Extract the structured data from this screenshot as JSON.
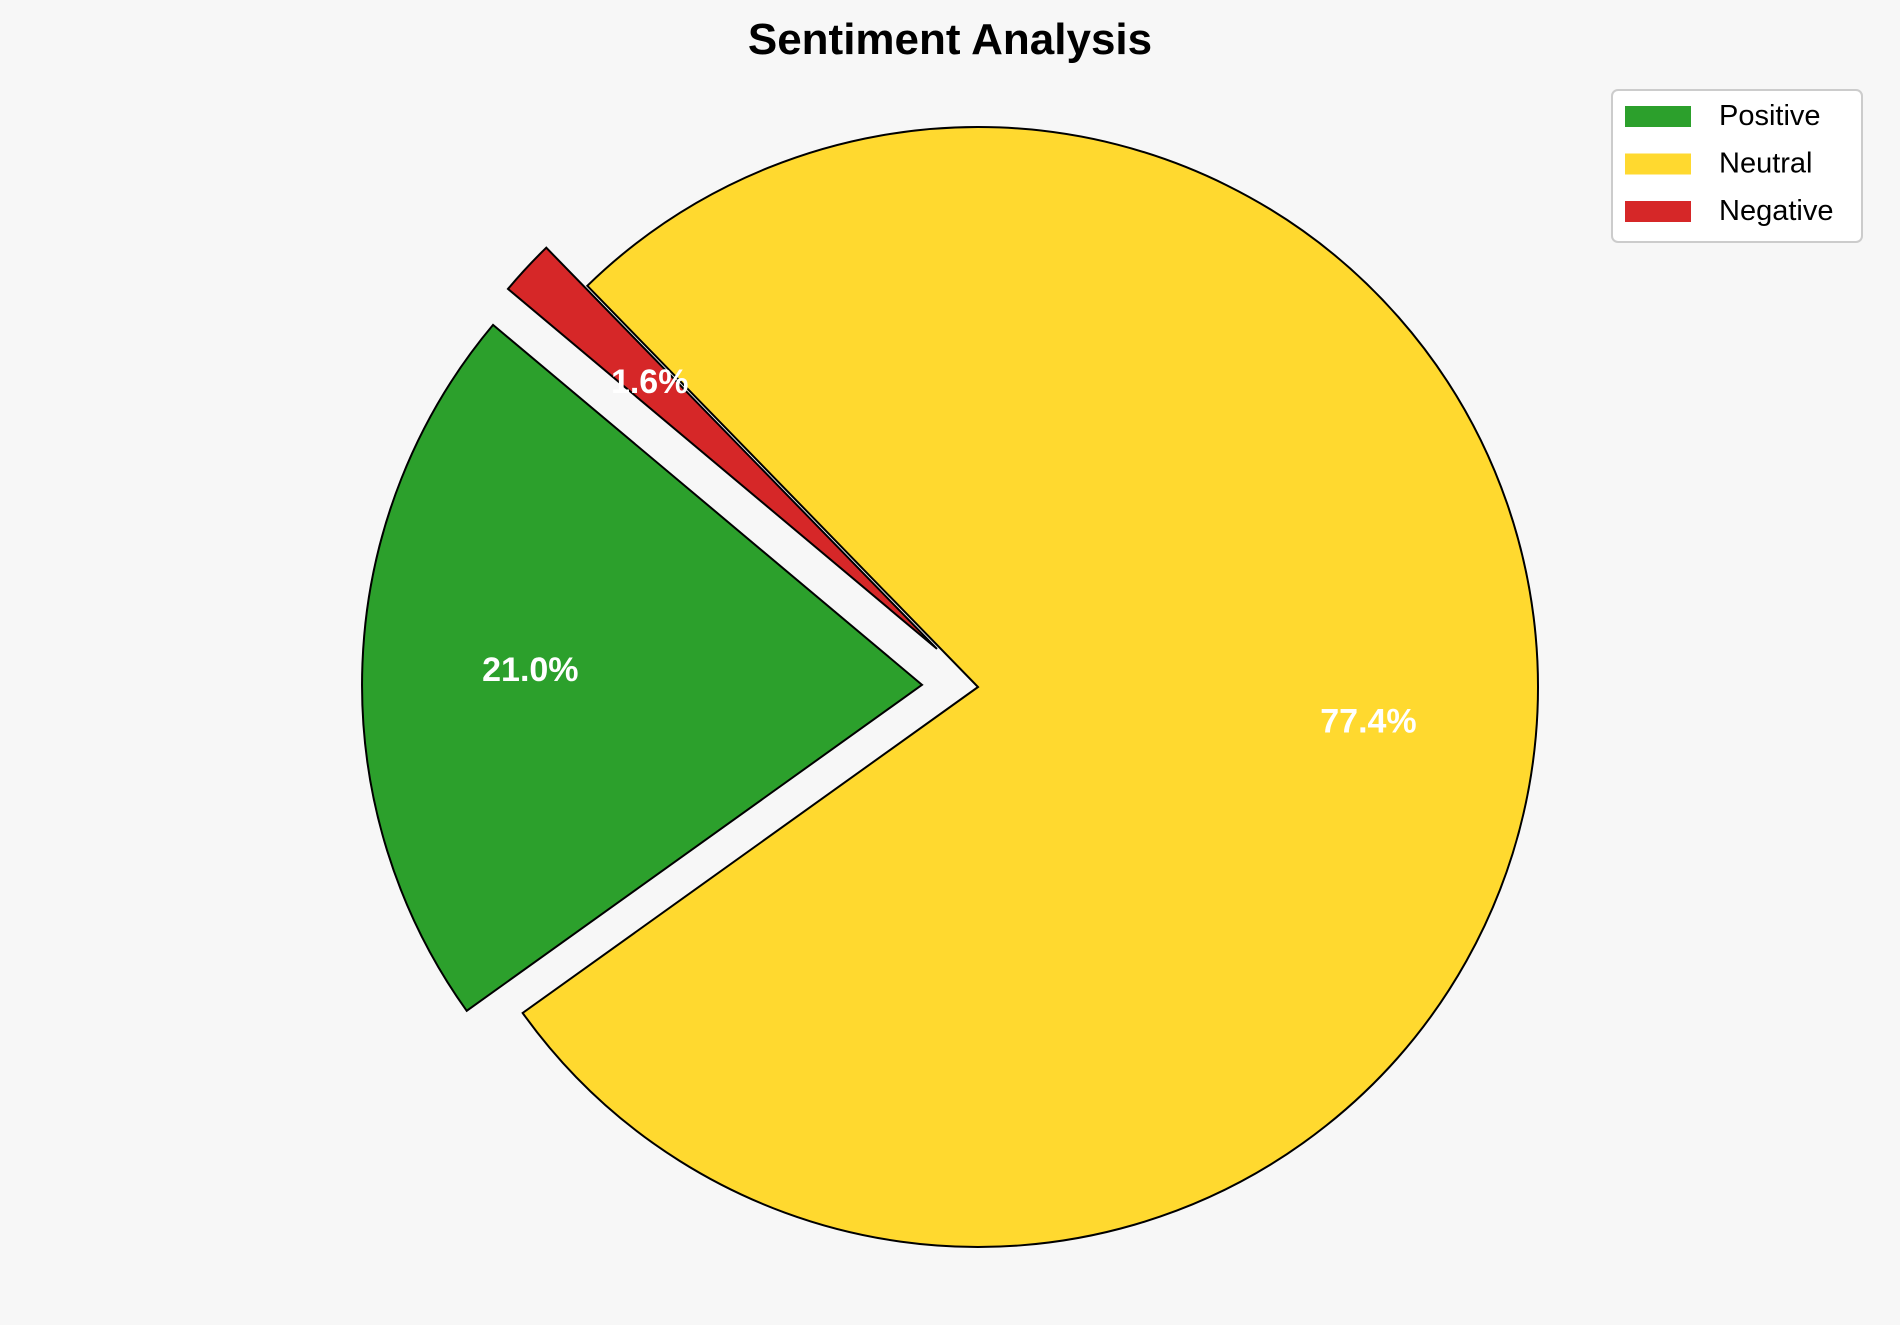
{
  "chart_data": {
    "type": "pie",
    "title": "Sentiment Analysis",
    "labels": [
      "Positive",
      "Neutral",
      "Negative"
    ],
    "values": [
      21.0,
      77.4,
      1.6
    ],
    "value_labels": [
      "21.0%",
      "77.4%",
      "1.6%"
    ],
    "colors": [
      "#2ca02c",
      "#ffd92f",
      "#d62728"
    ],
    "explode": [
      0.1,
      0,
      0.1
    ],
    "startangle": 140,
    "legend": {
      "placement": "top-right",
      "entries": [
        "Positive",
        "Neutral",
        "Negative"
      ]
    }
  }
}
